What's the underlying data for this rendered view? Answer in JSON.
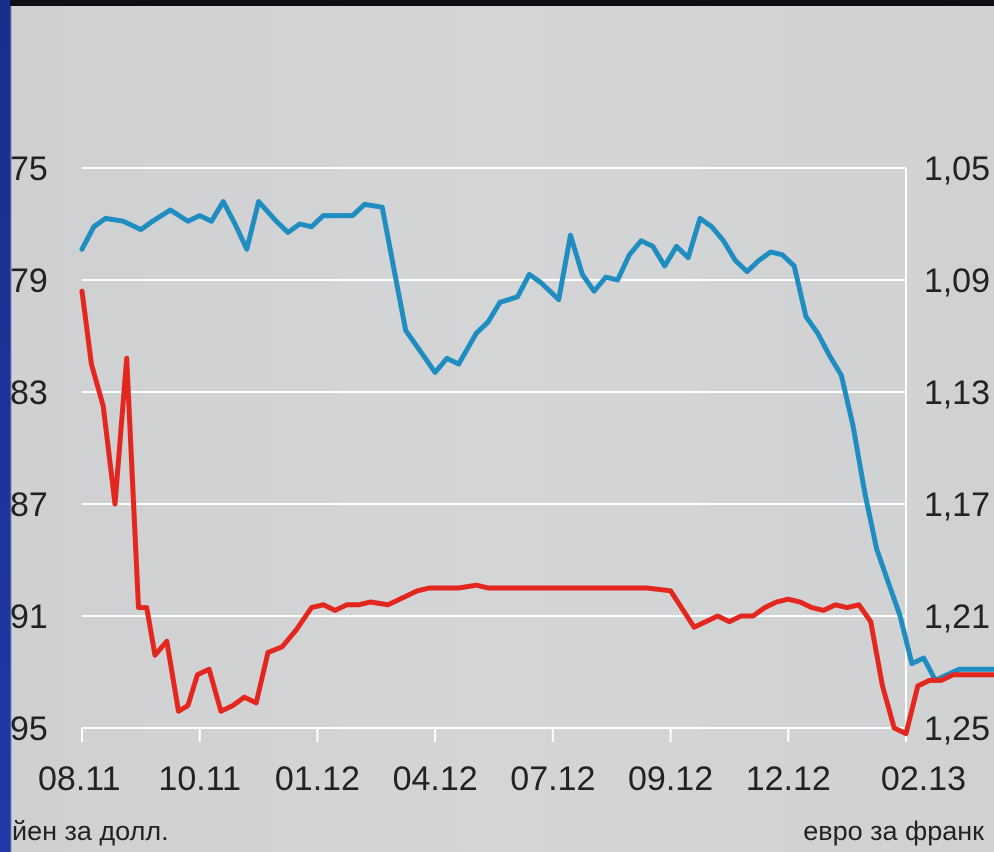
{
  "chart_data": {
    "type": "line",
    "left_axis_label": "йен за долл.",
    "right_axis_label": "евро за франк",
    "x_ticks": [
      "08.11",
      "10.11",
      "01.12",
      "04.12",
      "07.12",
      "09.12",
      "12.12",
      "02.13"
    ],
    "left_ticks": [
      "75",
      "79",
      "83",
      "87",
      "91",
      "95"
    ],
    "right_ticks": [
      "1,05",
      "1,09",
      "1,13",
      "1,17",
      "1,21",
      "1,25"
    ],
    "left_range": [
      75,
      95
    ],
    "right_range": [
      1.05,
      1.25
    ],
    "left_inverted": true,
    "right_inverted": true,
    "grid": true,
    "series": [
      {
        "color": "#1f8dc0",
        "axis": "right",
        "x": [
          0.0,
          0.1,
          0.2,
          0.35,
          0.5,
          0.6,
          0.75,
          0.9,
          1.0,
          1.1,
          1.2,
          1.3,
          1.4,
          1.5,
          1.65,
          1.75,
          1.85,
          1.95,
          2.05,
          2.15,
          2.3,
          2.4,
          2.55,
          2.65,
          2.75,
          2.9,
          3.0,
          3.1,
          3.2,
          3.35,
          3.45,
          3.55,
          3.7,
          3.8,
          3.9,
          4.05,
          4.15,
          4.25,
          4.35,
          4.45,
          4.55,
          4.65,
          4.75,
          4.85,
          4.95,
          5.05,
          5.15,
          5.25,
          5.35,
          5.45,
          5.55,
          5.65,
          5.75,
          5.85,
          5.95,
          6.05,
          6.15,
          6.25,
          6.35,
          6.45,
          6.55,
          6.65,
          6.75,
          6.85,
          6.95,
          7.05,
          7.15,
          7.25,
          7.35,
          7.45,
          7.55,
          7.65,
          7.75,
          7.82
        ],
        "values": [
          1.079,
          1.071,
          1.068,
          1.069,
          1.072,
          1.069,
          1.065,
          1.069,
          1.067,
          1.069,
          1.062,
          1.07,
          1.079,
          1.062,
          1.069,
          1.073,
          1.07,
          1.071,
          1.067,
          1.067,
          1.067,
          1.063,
          1.064,
          1.086,
          1.108,
          1.117,
          1.123,
          1.118,
          1.12,
          1.109,
          1.105,
          1.098,
          1.096,
          1.088,
          1.091,
          1.097,
          1.074,
          1.088,
          1.094,
          1.089,
          1.09,
          1.081,
          1.076,
          1.078,
          1.085,
          1.078,
          1.082,
          1.068,
          1.071,
          1.076,
          1.083,
          1.087,
          1.083,
          1.08,
          1.081,
          1.085,
          1.103,
          1.109,
          1.117,
          1.124,
          1.142,
          1.166,
          1.186,
          1.198,
          1.21,
          1.227,
          1.225,
          1.233,
          1.231,
          1.229,
          1.229,
          1.229,
          1.229,
          1.229
        ]
      },
      {
        "color": "#e3261e",
        "axis": "left",
        "x": [
          0.0,
          0.08,
          0.18,
          0.28,
          0.38,
          0.48,
          0.55,
          0.62,
          0.72,
          0.82,
          0.9,
          0.98,
          1.08,
          1.18,
          1.28,
          1.38,
          1.48,
          1.58,
          1.7,
          1.82,
          1.95,
          2.05,
          2.15,
          2.25,
          2.35,
          2.45,
          2.6,
          2.75,
          2.85,
          2.95,
          3.05,
          3.2,
          3.35,
          3.45,
          3.55,
          3.7,
          3.85,
          4.0,
          4.2,
          4.4,
          4.6,
          4.8,
          5.0,
          5.2,
          5.4,
          5.5,
          5.6,
          5.7,
          5.8,
          5.9,
          6.0,
          6.1,
          6.2,
          6.3,
          6.4,
          6.5,
          6.6,
          6.7,
          6.8,
          6.9,
          7.0,
          7.1,
          7.2,
          7.3,
          7.4,
          7.5,
          7.6,
          7.7,
          7.82
        ],
        "values": [
          79.4,
          82.0,
          83.5,
          87.0,
          81.8,
          90.7,
          90.7,
          92.4,
          91.9,
          94.4,
          94.2,
          93.1,
          92.9,
          94.4,
          94.2,
          93.9,
          94.1,
          92.3,
          92.1,
          91.5,
          90.7,
          90.6,
          90.8,
          90.6,
          90.6,
          90.5,
          90.6,
          90.3,
          90.1,
          90.0,
          90.0,
          90.0,
          89.9,
          90.0,
          90.0,
          90.0,
          90.0,
          90.0,
          90.0,
          90.0,
          90.0,
          90.0,
          90.1,
          91.4,
          91.0,
          91.2,
          91.0,
          91.0,
          90.7,
          90.5,
          90.4,
          90.5,
          90.7,
          90.8,
          90.6,
          90.7,
          90.6,
          91.2,
          93.5,
          95.0,
          95.2,
          93.5,
          93.3,
          93.3,
          93.1,
          93.1,
          93.1,
          93.1,
          93.1
        ]
      }
    ]
  }
}
